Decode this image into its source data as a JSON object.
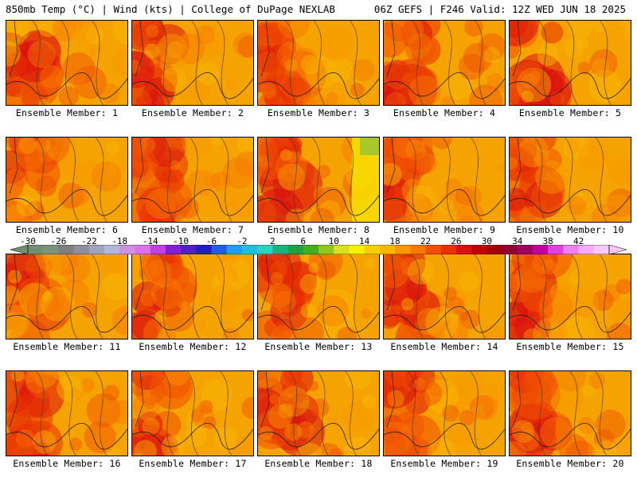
{
  "header": {
    "left_title": "850mb Temp (°C) | Wind (kts) | College of DuPage NEXLAB",
    "right_title": "06Z GEFS | F246 Valid: 12Z WED JUN 18 2025"
  },
  "panels": [
    {
      "label": "Ensemble Member: 1"
    },
    {
      "label": "Ensemble Member: 2"
    },
    {
      "label": "Ensemble Member: 3"
    },
    {
      "label": "Ensemble Member: 4"
    },
    {
      "label": "Ensemble Member: 5"
    },
    {
      "label": "Ensemble Member: 6"
    },
    {
      "label": "Ensemble Member: 7"
    },
    {
      "label": "Ensemble Member: 8"
    },
    {
      "label": "Ensemble Member: 9"
    },
    {
      "label": "Ensemble Member: 10"
    },
    {
      "label": "Ensemble Member: 11"
    },
    {
      "label": "Ensemble Member: 12"
    },
    {
      "label": "Ensemble Member: 13"
    },
    {
      "label": "Ensemble Member: 14"
    },
    {
      "label": "Ensemble Member: 15"
    },
    {
      "label": "Ensemble Member: 16"
    },
    {
      "label": "Ensemble Member: 17"
    },
    {
      "label": "Ensemble Member: 18"
    },
    {
      "label": "Ensemble Member: 19"
    },
    {
      "label": "Ensemble Member: 20"
    }
  ],
  "colorbar": {
    "tick_labels": [
      "-30",
      "-26",
      "-22",
      "-18",
      "-14",
      "-10",
      "-6",
      "-2",
      "2",
      "6",
      "10",
      "14",
      "18",
      "22",
      "26",
      "30",
      "34",
      "38",
      "42"
    ],
    "colors": [
      "#6f8f6f",
      "#7a937a",
      "#7f7f7f",
      "#8f8f9f",
      "#a0a0c0",
      "#b0b8e0",
      "#d090e0",
      "#e070f0",
      "#c040e0",
      "#8020d0",
      "#5020c0",
      "#2020c0",
      "#2060e0",
      "#20a0f0",
      "#20c0e0",
      "#30d0c0",
      "#20b080",
      "#20a040",
      "#40b020",
      "#90c820",
      "#d8e020",
      "#f8f000",
      "#f8d000",
      "#f8b800",
      "#f89800",
      "#f87800",
      "#f05000",
      "#e83000",
      "#d81010",
      "#c00000",
      "#a00000",
      "#900030",
      "#a00060",
      "#c000a0",
      "#e040e0",
      "#f080f0",
      "#f8a8f8",
      "#f8c8f8"
    ]
  }
}
